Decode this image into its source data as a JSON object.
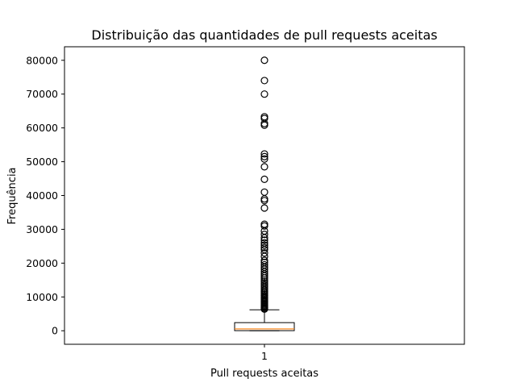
{
  "chart_data": {
    "type": "boxplot",
    "title": "Distribuição das quantidades de pull requests aceitas",
    "xlabel": "Pull requests aceitas",
    "ylabel": "Frequência",
    "categories": [
      "1"
    ],
    "ylim": [
      -4000,
      84000
    ],
    "y_ticks": [
      0,
      10000,
      20000,
      30000,
      40000,
      50000,
      60000,
      70000,
      80000
    ],
    "grid": false,
    "colors": {
      "box": "#000000",
      "median": "#ff7f0e",
      "outlier": "#000000"
    },
    "box": {
      "q1": 30,
      "median": 550,
      "q3": 2400,
      "whisker_low": 0,
      "whisker_high": 6200
    },
    "outliers": [
      6400,
      6700,
      7000,
      7300,
      7600,
      7900,
      8200,
      8500,
      8800,
      9100,
      9400,
      9700,
      10000,
      10400,
      10800,
      11200,
      11600,
      12000,
      12500,
      13000,
      13500,
      14000,
      14500,
      15000,
      15600,
      16200,
      16800,
      17500,
      18200,
      18800,
      19500,
      20200,
      20800,
      22000,
      23000,
      24000,
      24600,
      25300,
      26000,
      26800,
      27500,
      28500,
      29500,
      31000,
      31500,
      36300,
      38500,
      39000,
      41000,
      44800,
      48500,
      50800,
      51500,
      52300,
      60800,
      61300,
      62800,
      63300,
      70000,
      74000,
      80000
    ]
  }
}
